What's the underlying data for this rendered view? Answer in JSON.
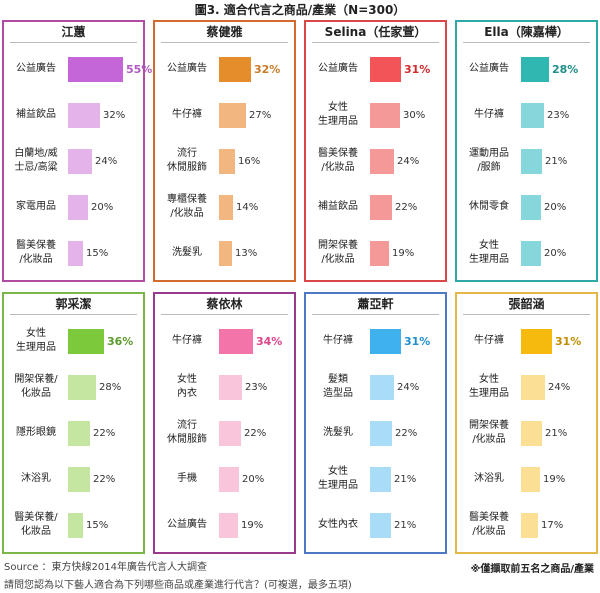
{
  "title": "圖3. 適合代言之商品/產業（N=300）",
  "source": "Source ：東方快線2014年廣告代言人大調查",
  "note": "※僅擷取前五名之商品/產業",
  "question": "請問您認為以下藝人適合為下列哪些商品或產業進行代言？(可複選，最多五項)",
  "chart_data": [
    {
      "type": "bar",
      "title": "江蕙",
      "border": "#b04da3",
      "bar_color": "#e3b3ea",
      "top_color": "#c566d8",
      "top_text": "#b05cc3",
      "categories": [
        "公益廣告",
        "補益飲品",
        "白蘭地/威\n士忌/高粱",
        "家電用品",
        "醫美保養\n/化妝品"
      ],
      "values": [
        55,
        32,
        24,
        20,
        15
      ],
      "labels": [
        "55%",
        "32%",
        "24%",
        "20%",
        "15%"
      ]
    },
    {
      "type": "bar",
      "title": "蔡健雅",
      "border": "#d36b2e",
      "bar_color": "#f2b781",
      "top_color": "#e58d2b",
      "top_text": "#c77a2a",
      "categories": [
        "公益廣告",
        "牛仔褲",
        "流行\n休閒服飾",
        "專櫃保養\n/化妝品",
        "洗髮乳"
      ],
      "values": [
        32,
        27,
        16,
        14,
        13
      ],
      "labels": [
        "32%",
        "27%",
        "16%",
        "14%",
        "13%"
      ]
    },
    {
      "type": "bar",
      "title": "Selina（任家萱）",
      "border": "#d94848",
      "bar_color": "#f59898",
      "top_color": "#f25458",
      "top_text": "#d22c2c",
      "categories": [
        "公益廣告",
        "女性\n生理用品",
        "醫美保養\n/化妝品",
        "補益飲品",
        "開架保養\n/化妝品"
      ],
      "values": [
        31,
        30,
        24,
        22,
        19
      ],
      "labels": [
        "31%",
        "30%",
        "24%",
        "22%",
        "19%"
      ]
    },
    {
      "type": "bar",
      "title": "Ella（陳嘉樺）",
      "border": "#2fa8a8",
      "bar_color": "#86d7dc",
      "top_color": "#2fb7b2",
      "top_text": "#1f8f8a",
      "categories": [
        "公益廣告",
        "牛仔褲",
        "運動用品\n/服飾",
        "休閒零食",
        "女性\n生理用品"
      ],
      "values": [
        28,
        23,
        21,
        20,
        20
      ],
      "labels": [
        "28%",
        "23%",
        "21%",
        "20%",
        "20%"
      ]
    },
    {
      "type": "bar",
      "title": "郭采潔",
      "border": "#7ab648",
      "bar_color": "#c4e6a1",
      "top_color": "#7dc93c",
      "top_text": "#5a9a2a",
      "categories": [
        "女性\n生理用品",
        "開架保養/\n化妝品",
        "隱形眼鏡",
        "沐浴乳",
        "醫美保養/\n化妝品"
      ],
      "values": [
        36,
        28,
        22,
        22,
        15
      ],
      "labels": [
        "36%",
        "28%",
        "22%",
        "22%",
        "15%"
      ]
    },
    {
      "type": "bar",
      "title": "蔡依林",
      "border": "#9a3a8e",
      "bar_color": "#f9c5da",
      "top_color": "#f274a8",
      "top_text": "#e0448a",
      "categories": [
        "牛仔褲",
        "女性\n內衣",
        "流行\n休閒服飾",
        "手機",
        "公益廣告"
      ],
      "values": [
        34,
        23,
        22,
        20,
        19
      ],
      "labels": [
        "34%",
        "23%",
        "22%",
        "20%",
        "19%"
      ]
    },
    {
      "type": "bar",
      "title": "蕭亞軒",
      "border": "#4d78c4",
      "bar_color": "#a9dcf6",
      "top_color": "#3fb2ee",
      "top_text": "#1f8fd0",
      "categories": [
        "牛仔褲",
        "髮類\n造型品",
        "洗髮乳",
        "女性\n生理用品",
        "女性內衣"
      ],
      "values": [
        31,
        24,
        22,
        21,
        21
      ],
      "labels": [
        "31%",
        "24%",
        "22%",
        "21%",
        "21%"
      ]
    },
    {
      "type": "bar",
      "title": "張韶涵",
      "border": "#e3b84a",
      "bar_color": "#fbdf95",
      "top_color": "#f6b90e",
      "top_text": "#c38c00",
      "categories": [
        "牛仔褲",
        "女性\n生理用品",
        "開架保養\n/化妝品",
        "沐浴乳",
        "醫美保養\n/化妝品"
      ],
      "values": [
        31,
        24,
        21,
        19,
        17
      ],
      "labels": [
        "31%",
        "24%",
        "21%",
        "19%",
        "17%"
      ]
    }
  ]
}
